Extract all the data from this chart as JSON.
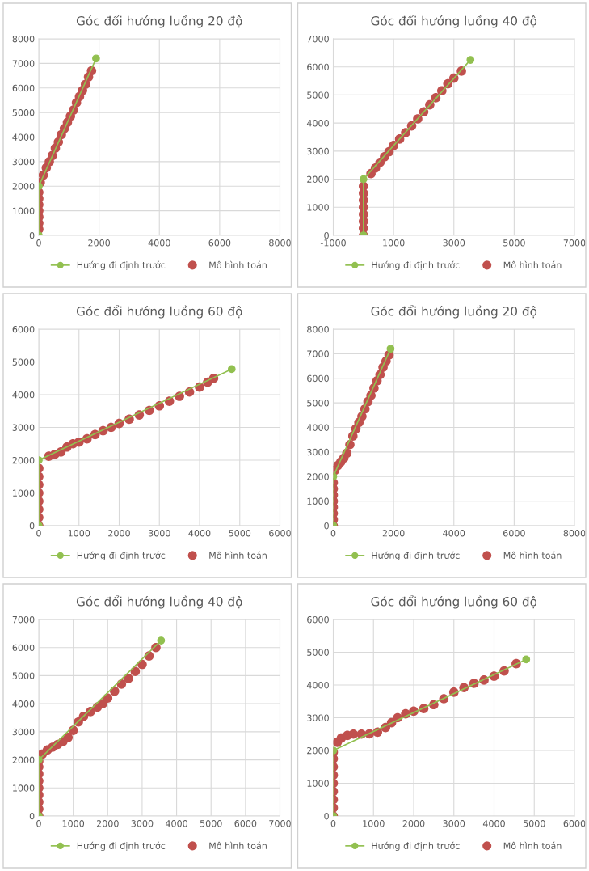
{
  "chart_data": [
    {
      "type": "scatter",
      "title": "Góc đổi hướng luồng 20 độ",
      "xlim": [
        0,
        8000
      ],
      "xticks": [
        0,
        2000,
        4000,
        6000,
        8000
      ],
      "ylim": [
        0,
        8000
      ],
      "yticks": [
        0,
        1000,
        2000,
        3000,
        4000,
        5000,
        6000,
        7000,
        8000
      ],
      "grid": true,
      "legend": "bottom",
      "series": [
        {
          "name": "Hướng đi định trước",
          "type": "line",
          "marker": "circle",
          "color": "#92c050",
          "x": [
            0,
            0,
            1900
          ],
          "values": [
            0,
            2000,
            7200
          ]
        },
        {
          "name": "Mô hình toán",
          "type": "scatter",
          "marker": "circle",
          "color": "#c0504d",
          "x": [
            0,
            0,
            0,
            0,
            0,
            0,
            0,
            50,
            150,
            250,
            350,
            450,
            550,
            650,
            750,
            850,
            950,
            1050,
            1150,
            1250,
            1350,
            1450,
            1550,
            1650,
            1750
          ],
          "values": [
            250,
            500,
            750,
            1000,
            1250,
            1500,
            1750,
            2150,
            2450,
            2750,
            3000,
            3250,
            3550,
            3800,
            4100,
            4350,
            4600,
            4850,
            5100,
            5400,
            5650,
            5900,
            6150,
            6450,
            6700
          ]
        }
      ]
    },
    {
      "type": "scatter",
      "title": "Góc đổi hướng luồng 40 độ",
      "xlim": [
        -1000,
        7000
      ],
      "xticks": [
        -1000,
        1000,
        3000,
        5000,
        7000
      ],
      "ylim": [
        0,
        7000
      ],
      "yticks": [
        0,
        1000,
        2000,
        3000,
        4000,
        5000,
        6000,
        7000
      ],
      "grid": true,
      "legend": "bottom",
      "series": [
        {
          "name": "Hướng đi định trước",
          "type": "line",
          "marker": "circle",
          "color": "#92c050",
          "x": [
            0,
            0,
            3550
          ],
          "values": [
            0,
            2000,
            6250
          ]
        },
        {
          "name": "Mô hình toán",
          "type": "scatter",
          "marker": "circle",
          "color": "#c0504d",
          "x": [
            0,
            0,
            0,
            0,
            0,
            0,
            0,
            0,
            250,
            400,
            550,
            700,
            850,
            1000,
            1200,
            1400,
            1600,
            1800,
            2000,
            2200,
            2400,
            2600,
            2800,
            3000,
            3250
          ],
          "values": [
            0,
            250,
            500,
            750,
            1000,
            1250,
            1500,
            1750,
            2200,
            2400,
            2600,
            2800,
            2980,
            3200,
            3430,
            3660,
            3900,
            4150,
            4400,
            4650,
            4900,
            5150,
            5400,
            5600,
            5850
          ]
        }
      ]
    },
    {
      "type": "scatter",
      "title": "Góc đổi hướng luồng 60 độ",
      "xlim": [
        0,
        6000
      ],
      "xticks": [
        0,
        1000,
        2000,
        3000,
        4000,
        5000,
        6000
      ],
      "ylim": [
        0,
        6000
      ],
      "yticks": [
        0,
        1000,
        2000,
        3000,
        4000,
        5000,
        6000
      ],
      "grid": true,
      "legend": "bottom",
      "series": [
        {
          "name": "Hướng đi định trước",
          "type": "line",
          "marker": "circle",
          "color": "#92c050",
          "x": [
            0,
            0,
            4800
          ],
          "values": [
            0,
            2000,
            4780
          ]
        },
        {
          "name": "Mô hình toán",
          "type": "scatter",
          "marker": "circle",
          "color": "#c0504d",
          "x": [
            0,
            0,
            0,
            0,
            0,
            0,
            0,
            0,
            250,
            400,
            550,
            700,
            850,
            1000,
            1200,
            1400,
            1600,
            1800,
            2000,
            2250,
            2500,
            2750,
            3000,
            3250,
            3500,
            3750,
            4000,
            4200,
            4350
          ],
          "values": [
            0,
            250,
            500,
            750,
            1000,
            1250,
            1500,
            1750,
            2120,
            2180,
            2250,
            2400,
            2500,
            2550,
            2650,
            2780,
            2900,
            3000,
            3120,
            3250,
            3380,
            3520,
            3660,
            3800,
            3950,
            4080,
            4230,
            4380,
            4500
          ]
        }
      ]
    },
    {
      "type": "scatter",
      "title": "Góc đổi hướng luồng 20 độ",
      "xlim": [
        0,
        8000
      ],
      "xticks": [
        0,
        2000,
        4000,
        6000,
        8000
      ],
      "ylim": [
        0,
        8000
      ],
      "yticks": [
        0,
        1000,
        2000,
        3000,
        4000,
        5000,
        6000,
        7000,
        8000
      ],
      "grid": true,
      "legend": "bottom",
      "series": [
        {
          "name": "Hướng đi định trước",
          "type": "line",
          "marker": "circle",
          "color": "#92c050",
          "x": [
            0,
            0,
            1900
          ],
          "values": [
            0,
            2000,
            7200
          ]
        },
        {
          "name": "Mô hình toán",
          "type": "scatter",
          "marker": "circle",
          "color": "#c0504d",
          "x": [
            0,
            0,
            0,
            0,
            0,
            0,
            0,
            0,
            50,
            150,
            250,
            350,
            450,
            550,
            650,
            750,
            850,
            950,
            1050,
            1150,
            1250,
            1350,
            1450,
            1550,
            1650,
            1750,
            1850
          ],
          "values": [
            0,
            250,
            500,
            750,
            1000,
            1250,
            1500,
            1750,
            2250,
            2450,
            2600,
            2750,
            2950,
            3300,
            3650,
            3950,
            4200,
            4450,
            4750,
            5050,
            5300,
            5600,
            5900,
            6150,
            6450,
            6700,
            6950
          ]
        }
      ]
    },
    {
      "type": "scatter",
      "title": "Góc đổi hướng luồng 40 độ",
      "xlim": [
        0,
        7000
      ],
      "xticks": [
        0,
        1000,
        2000,
        3000,
        4000,
        5000,
        6000,
        7000
      ],
      "ylim": [
        0,
        7000
      ],
      "yticks": [
        0,
        1000,
        2000,
        3000,
        4000,
        5000,
        6000,
        7000
      ],
      "grid": true,
      "legend": "bottom",
      "series": [
        {
          "name": "Hướng đi định trước",
          "type": "line",
          "marker": "circle",
          "color": "#92c050",
          "x": [
            0,
            0,
            3550
          ],
          "values": [
            0,
            2000,
            6250
          ]
        },
        {
          "name": "Mô hình toán",
          "type": "scatter",
          "marker": "circle",
          "color": "#c0504d",
          "x": [
            0,
            0,
            0,
            0,
            0,
            0,
            0,
            0,
            0,
            100,
            250,
            400,
            550,
            700,
            850,
            1000,
            1150,
            1300,
            1500,
            1700,
            1850,
            2000,
            2200,
            2400,
            2600,
            2800,
            3000,
            3200,
            3400
          ],
          "values": [
            0,
            250,
            500,
            750,
            1000,
            1250,
            1500,
            1750,
            1950,
            2200,
            2350,
            2450,
            2550,
            2650,
            2800,
            3050,
            3350,
            3550,
            3720,
            3880,
            4000,
            4200,
            4450,
            4700,
            4900,
            5150,
            5400,
            5700,
            6000
          ]
        }
      ]
    },
    {
      "type": "scatter",
      "title": "Góc đổi hướng luồng 60 độ",
      "xlim": [
        0,
        6000
      ],
      "xticks": [
        0,
        1000,
        2000,
        3000,
        4000,
        5000,
        6000
      ],
      "ylim": [
        0,
        6000
      ],
      "yticks": [
        0,
        1000,
        2000,
        3000,
        4000,
        5000,
        6000
      ],
      "grid": true,
      "legend": "bottom",
      "series": [
        {
          "name": "Hướng đi định trước",
          "type": "line",
          "marker": "circle",
          "color": "#92c050",
          "x": [
            0,
            0,
            4800
          ],
          "values": [
            0,
            2000,
            4780
          ]
        },
        {
          "name": "Mô hình toán",
          "type": "scatter",
          "marker": "circle",
          "color": "#c0504d",
          "x": [
            0,
            0,
            0,
            0,
            0,
            0,
            0,
            0,
            0,
            100,
            200,
            350,
            500,
            700,
            900,
            1100,
            1300,
            1450,
            1600,
            1800,
            2000,
            2250,
            2500,
            2750,
            3000,
            3250,
            3500,
            3750,
            4000,
            4250,
            4550
          ],
          "values": [
            0,
            250,
            500,
            750,
            1000,
            1250,
            1500,
            1750,
            1950,
            2250,
            2380,
            2460,
            2500,
            2500,
            2510,
            2560,
            2700,
            2850,
            3000,
            3120,
            3200,
            3280,
            3400,
            3580,
            3780,
            3920,
            4050,
            4150,
            4270,
            4430,
            4650
          ]
        }
      ]
    }
  ]
}
